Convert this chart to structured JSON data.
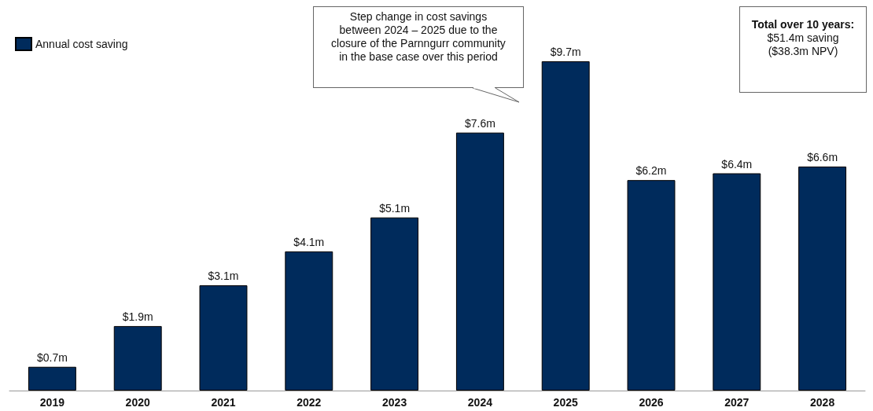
{
  "chart_data": {
    "type": "bar",
    "categories": [
      "2019",
      "2020",
      "2021",
      "2022",
      "2023",
      "2024",
      "2025",
      "2026",
      "2027",
      "2028"
    ],
    "series": [
      {
        "name": "Annual cost saving",
        "color": "#002b5c",
        "values": [
          0.7,
          1.9,
          3.1,
          4.1,
          5.1,
          7.6,
          9.7,
          6.2,
          6.4,
          6.6
        ],
        "value_labels": [
          "$0.7m",
          "$1.9m",
          "$3.1m",
          "$4.1m",
          "$5.1m",
          "$7.6m",
          "$9.7m",
          "$6.2m",
          "$6.4m",
          "$6.6m"
        ]
      }
    ],
    "legend": "top left",
    "annotations": [
      "Step change in cost savings between 2024 – 2025 due to the closure of the Parnngurr community in the base case over this period",
      "Total over 10 years:",
      "$51.4m saving ($38.3m NPV)"
    ]
  }
}
